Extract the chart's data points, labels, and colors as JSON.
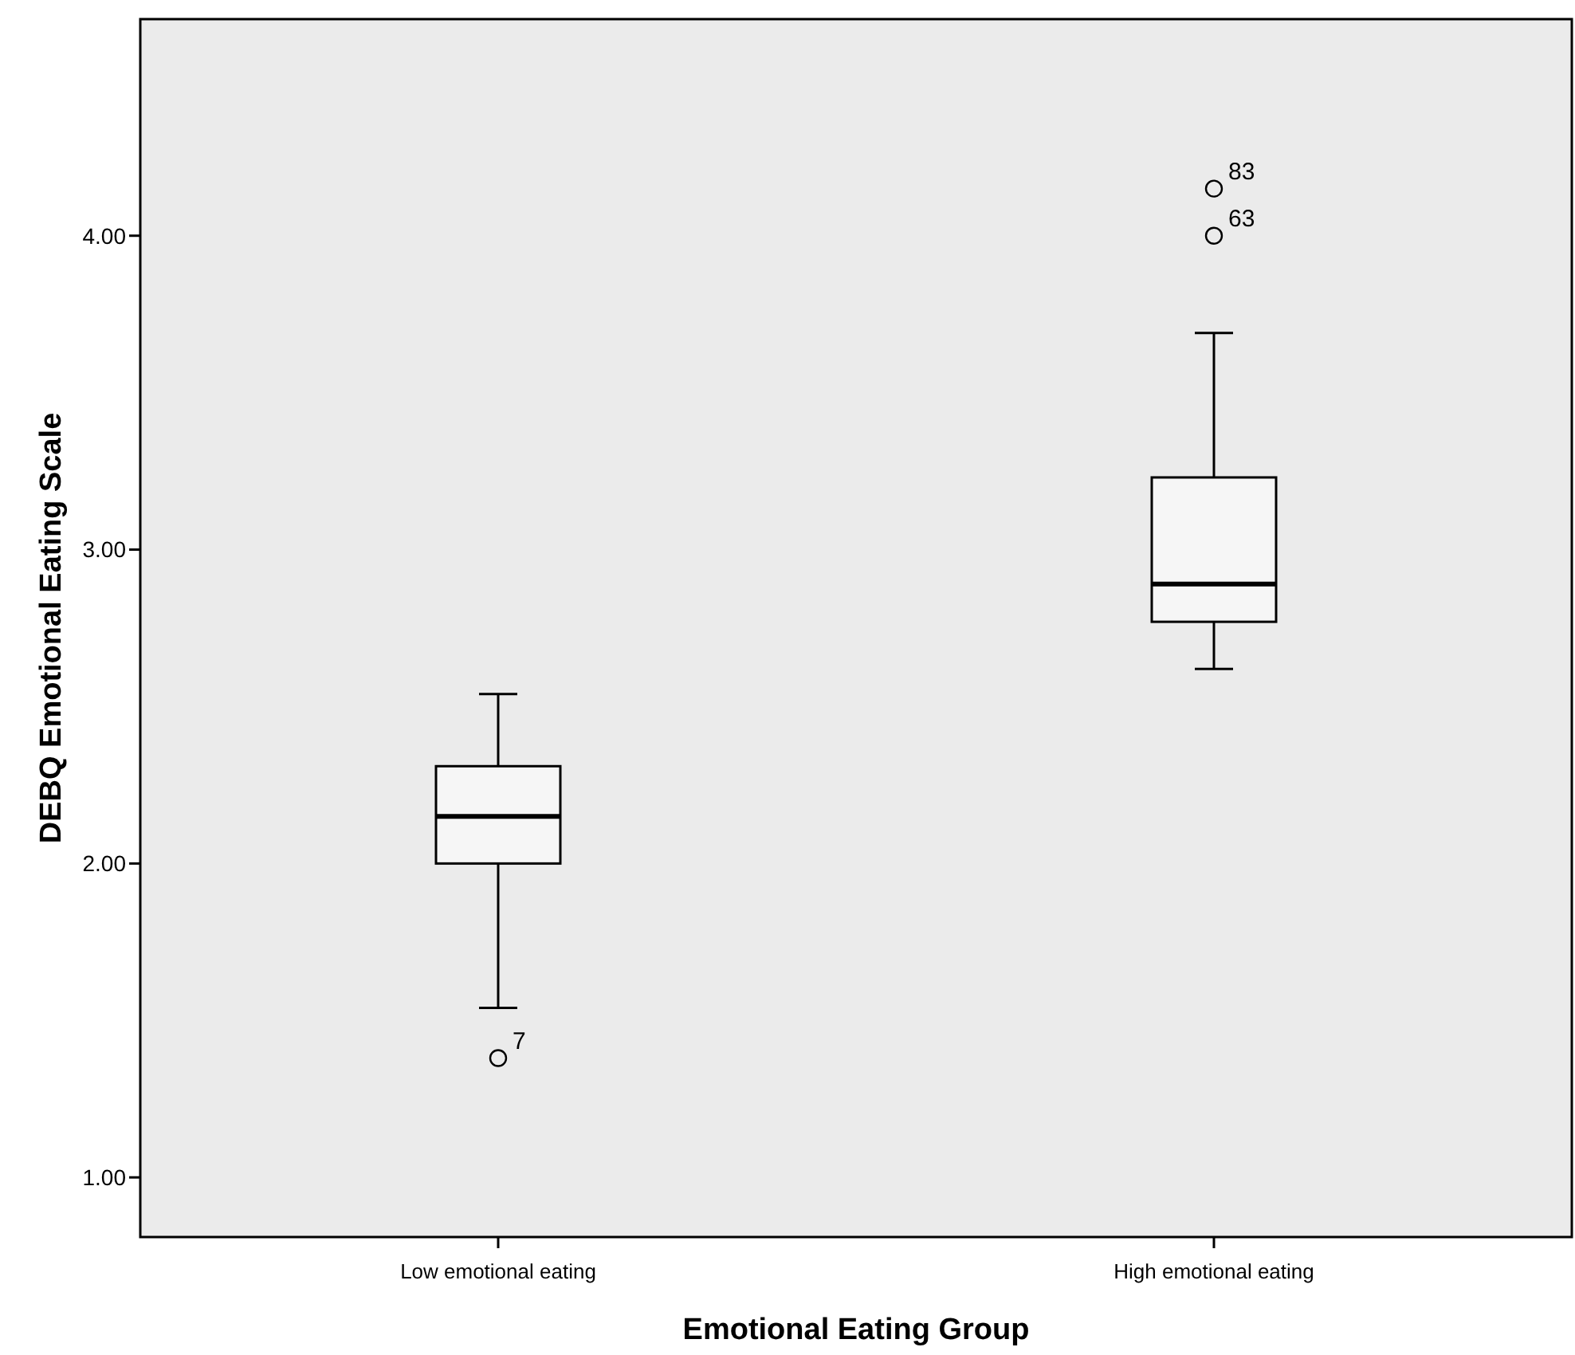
{
  "chart_data": {
    "type": "box",
    "xlabel": "Emotional Eating Group",
    "ylabel": "DEBQ Emotional Eating Scale",
    "categories": [
      "Low emotional eating",
      "High emotional eating"
    ],
    "series": [
      {
        "color": "#f6f6f6",
        "boxes": [
          {
            "low": 1.54,
            "q1": 2.0,
            "median": 2.15,
            "q3": 2.31,
            "high": 2.54,
            "outliers": [
              1.38
            ]
          },
          {
            "low": 2.62,
            "q1": 2.77,
            "median": 2.89,
            "q3": 3.23,
            "high": 3.69,
            "outliers": [
              4.0,
              4.15
            ]
          }
        ]
      }
    ],
    "ylim": [
      0.81,
      4.69
    ],
    "yticks": [
      {
        "value": 1,
        "label": "1.00"
      },
      {
        "value": 2,
        "label": "2.00"
      },
      {
        "value": 3,
        "label": "3.00"
      },
      {
        "value": 4,
        "label": "4.00"
      }
    ],
    "annotations": [
      "7",
      "63",
      "83"
    ]
  }
}
